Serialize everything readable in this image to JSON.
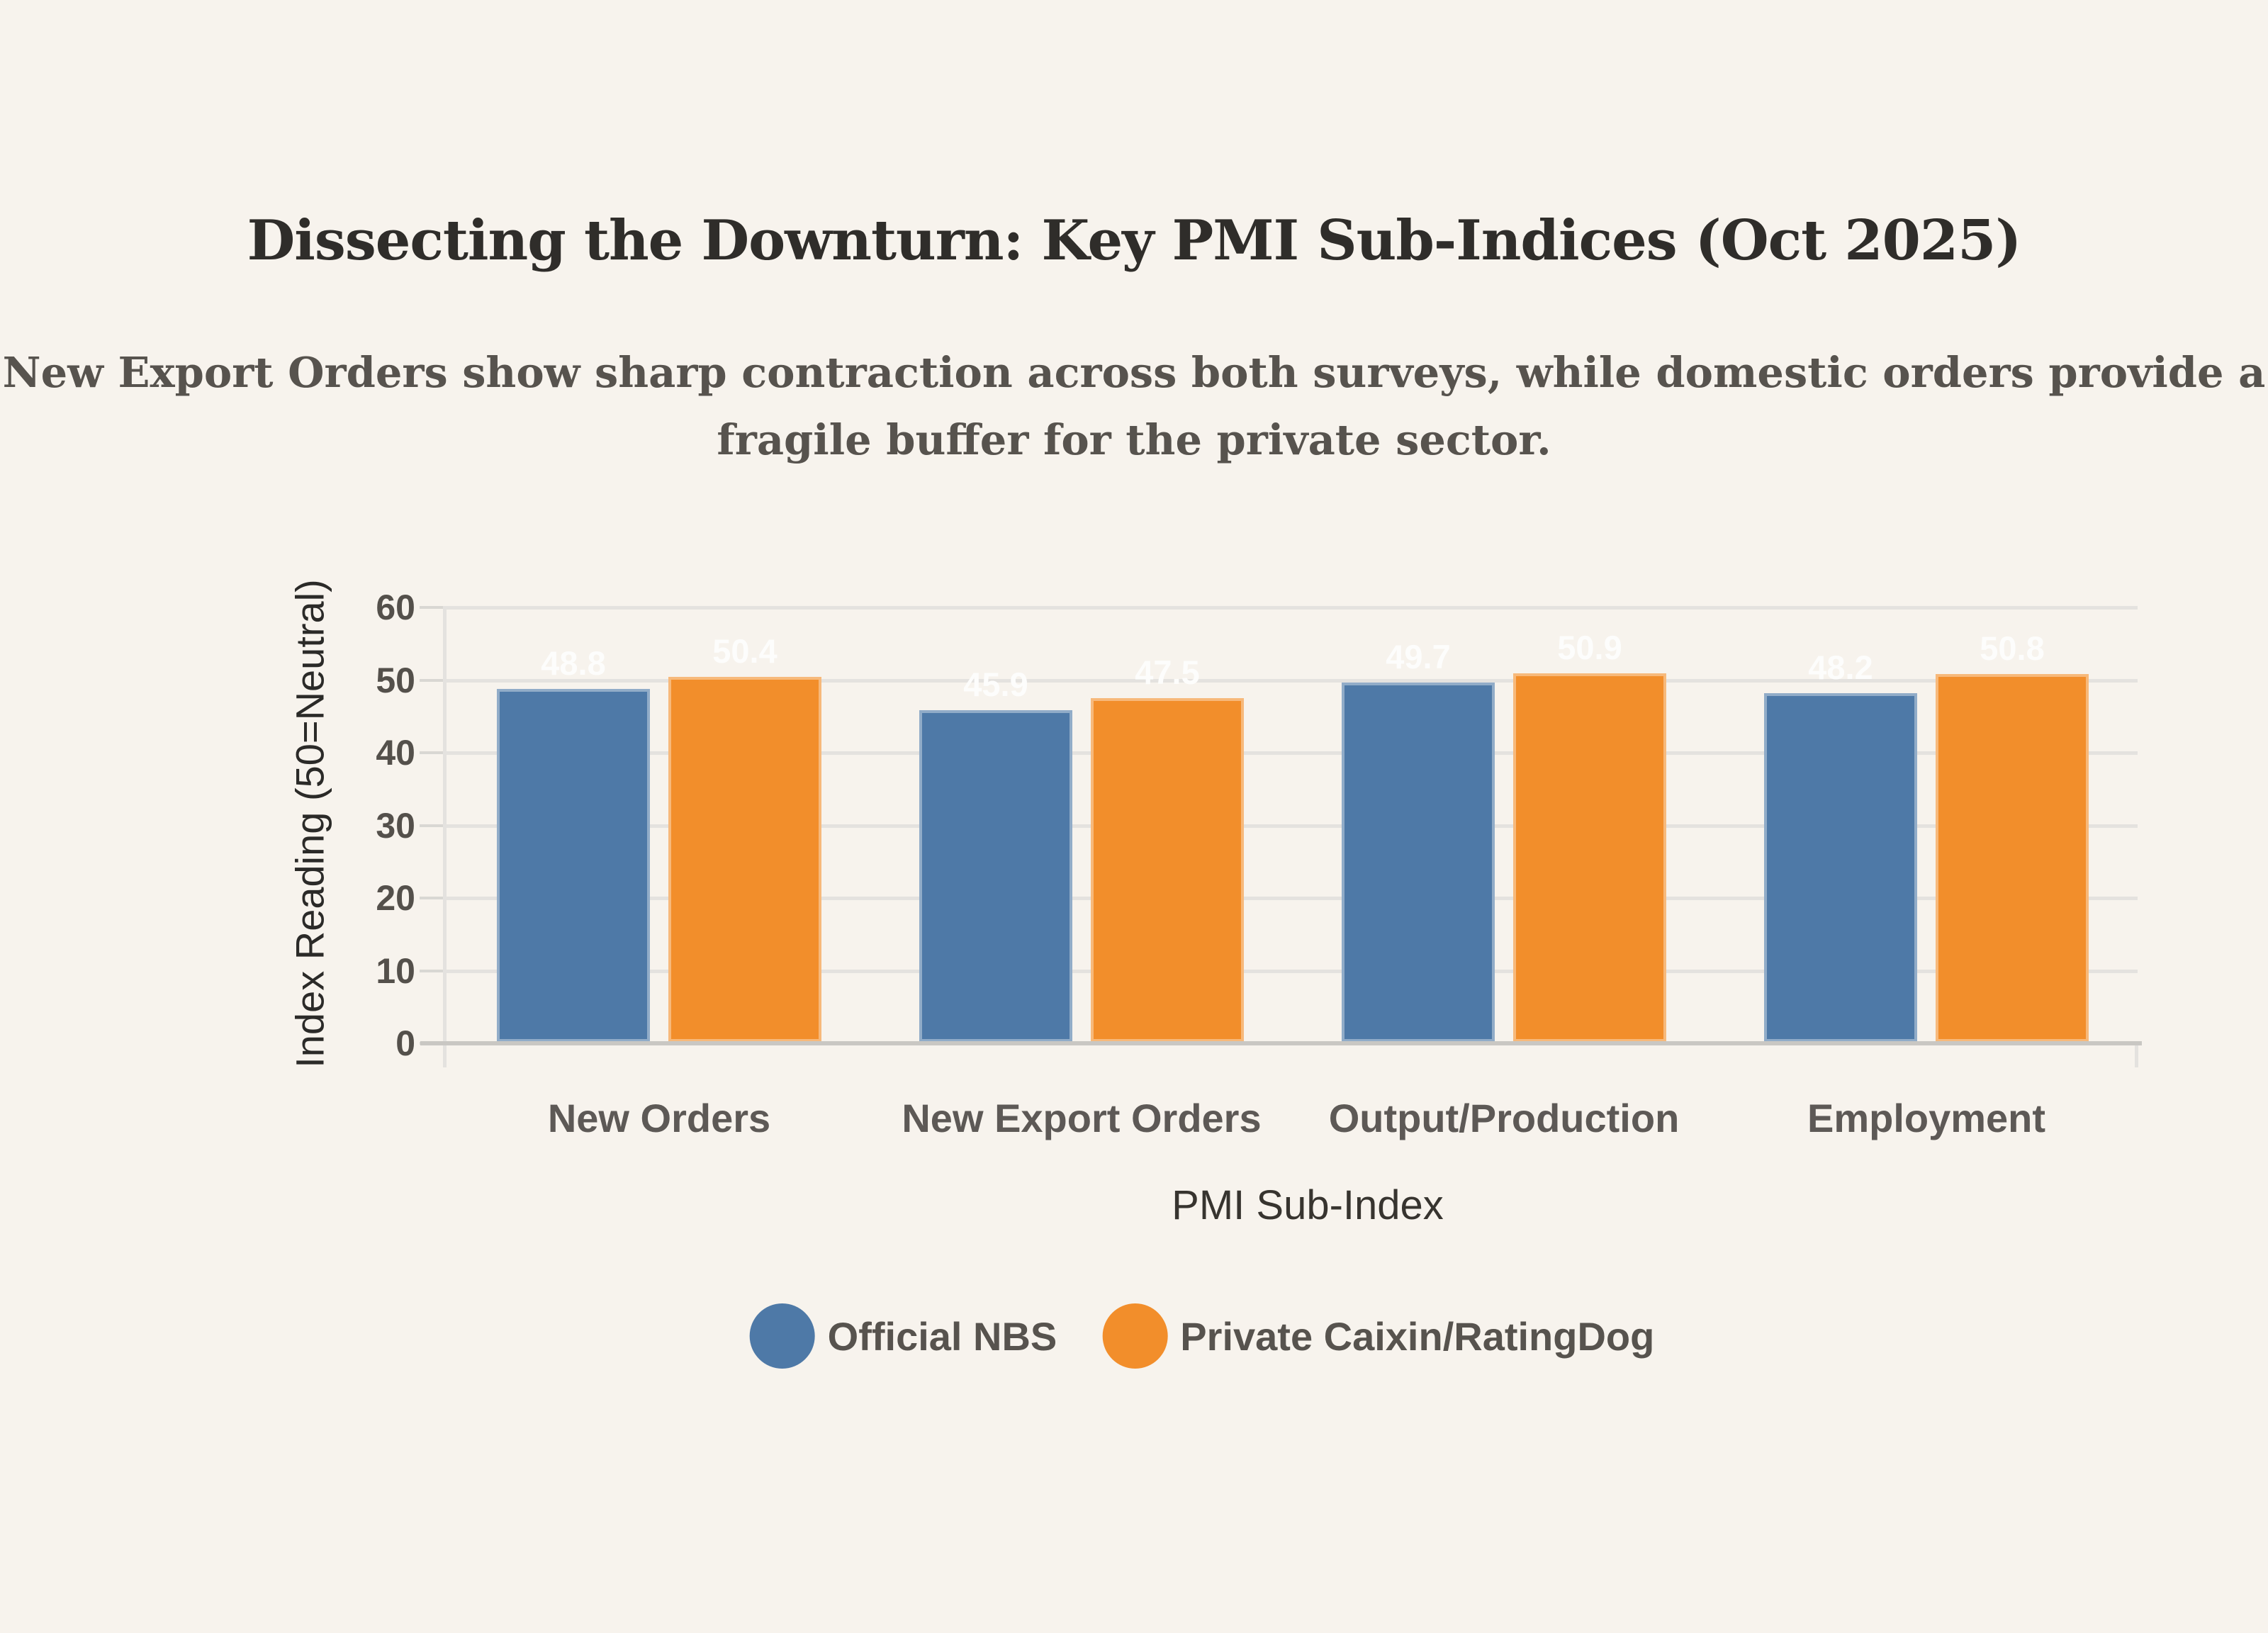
{
  "header": {
    "title": "Dissecting the Downturn: Key PMI Sub-Indices (Oct 2025)",
    "subtitle_line1": "New Export Orders show sharp contraction across both surveys, while domestic orders provide a",
    "subtitle_line2": "fragile buffer for the private sector."
  },
  "colors": {
    "background": "#f7f3ed",
    "series_blue": "#4e79a7",
    "series_orange": "#f28e2b",
    "gridline": "#e4e2df",
    "value_label": "#fdfdfc",
    "title_text": "#2f2d2a",
    "subtitle_text": "#57534e"
  },
  "chart_data": {
    "type": "bar",
    "title": "Dissecting the Downturn: Key PMI Sub-Indices (Oct 2025)",
    "subtitle": "New Export Orders show sharp contraction across both surveys, while domestic orders provide a fragile buffer for the private sector.",
    "categories": [
      "New Orders",
      "New Export Orders",
      "Output/Production",
      "Employment"
    ],
    "series": [
      {
        "name": "Official NBS",
        "color": "#4e79a7",
        "values": [
          48.8,
          45.9,
          49.7,
          48.2
        ]
      },
      {
        "name": "Private Caixin/RatingDog",
        "color": "#f28e2b",
        "values": [
          50.4,
          47.5,
          50.9,
          50.8
        ]
      }
    ],
    "xlabel": "PMI Sub-Index",
    "ylabel": "Index Reading (50=Neutral)",
    "yticks": [
      0,
      10,
      20,
      30,
      40,
      50,
      60
    ],
    "ylim": [
      0,
      60
    ],
    "grid": true,
    "legend_position": "bottom",
    "value_labels": true
  }
}
